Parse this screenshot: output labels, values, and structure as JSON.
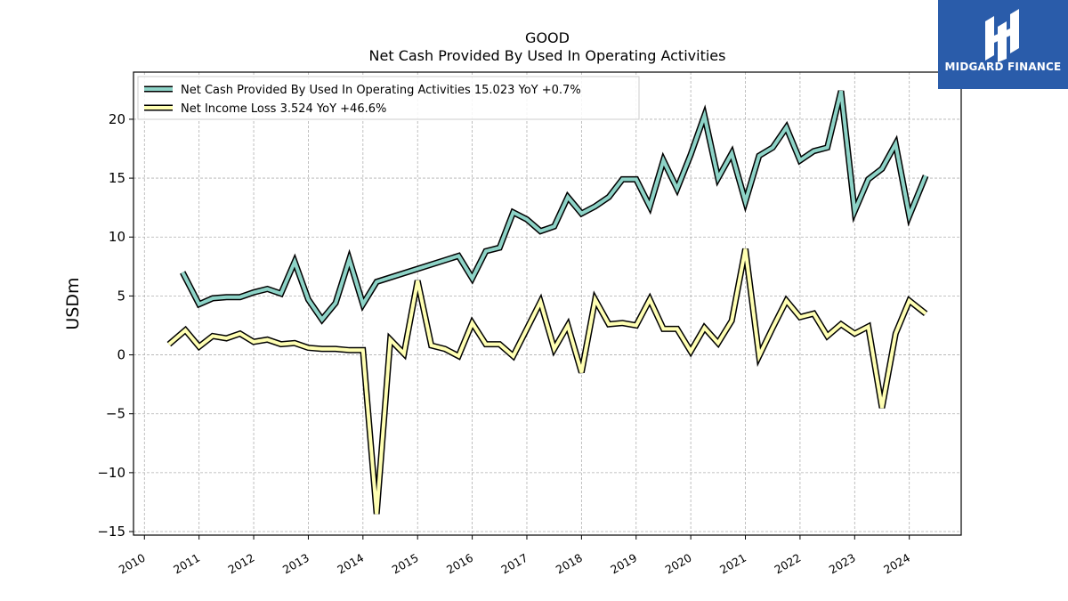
{
  "logo": {
    "text": "MIDGARD FINANCE",
    "icon": "midgard-logo-icon",
    "bg_color": "#2a5caa"
  },
  "chart_data": {
    "type": "line",
    "title": "GOOD",
    "subtitle": "Net Cash Provided By Used In Operating Activities",
    "ylabel": "USDm",
    "xlabel": "",
    "xlim": [
      2009.8,
      2024.95
    ],
    "ylim": [
      -15.3,
      24.0
    ],
    "yticks": [
      -15,
      -10,
      -5,
      0,
      5,
      10,
      15,
      20
    ],
    "ytick_labels": [
      "−15",
      "−10",
      "−5",
      "0",
      "5",
      "10",
      "15",
      "20"
    ],
    "xticks": [
      2010,
      2011,
      2012,
      2013,
      2014,
      2015,
      2016,
      2017,
      2018,
      2019,
      2020,
      2021,
      2022,
      2023,
      2024
    ],
    "xtick_labels": [
      "2010",
      "2011",
      "2012",
      "2013",
      "2014",
      "2015",
      "2016",
      "2017",
      "2018",
      "2019",
      "2020",
      "2021",
      "2022",
      "2023",
      "2024"
    ],
    "grid": true,
    "legend_position": "upper-left",
    "series": [
      {
        "name": "Net Cash Provided By Used In Operating Activities",
        "legend_label": "Net Cash Provided By Used In Operating Activities  15.023 YoY +0.7%",
        "color": "#8dd3c7",
        "points": [
          [
            2010.7,
            7.0
          ],
          [
            2011.0,
            4.3
          ],
          [
            2011.25,
            4.8
          ],
          [
            2011.5,
            4.9
          ],
          [
            2011.75,
            4.9
          ],
          [
            2012.0,
            5.3
          ],
          [
            2012.25,
            5.6
          ],
          [
            2012.5,
            5.2
          ],
          [
            2012.75,
            7.9
          ],
          [
            2013.0,
            4.7
          ],
          [
            2013.25,
            3.0
          ],
          [
            2013.5,
            4.4
          ],
          [
            2013.75,
            8.1
          ],
          [
            2014.0,
            4.3
          ],
          [
            2014.25,
            6.2
          ],
          [
            2015.75,
            8.4
          ],
          [
            2016.0,
            6.5
          ],
          [
            2016.25,
            8.8
          ],
          [
            2016.5,
            9.1
          ],
          [
            2016.75,
            12.1
          ],
          [
            2017.0,
            11.5
          ],
          [
            2017.25,
            10.5
          ],
          [
            2017.5,
            10.9
          ],
          [
            2017.75,
            13.4
          ],
          [
            2018.0,
            12.0
          ],
          [
            2018.25,
            12.6
          ],
          [
            2018.5,
            13.4
          ],
          [
            2018.75,
            14.9
          ],
          [
            2019.0,
            14.9
          ],
          [
            2019.25,
            12.6
          ],
          [
            2019.5,
            16.5
          ],
          [
            2019.75,
            14.1
          ],
          [
            2020.0,
            17.0
          ],
          [
            2020.25,
            20.3
          ],
          [
            2020.5,
            15.0
          ],
          [
            2020.75,
            17.1
          ],
          [
            2021.0,
            13.0
          ],
          [
            2021.25,
            16.9
          ],
          [
            2021.5,
            17.6
          ],
          [
            2021.75,
            19.3
          ],
          [
            2022.0,
            16.5
          ],
          [
            2022.25,
            17.3
          ],
          [
            2022.5,
            17.6
          ],
          [
            2022.75,
            22.4
          ],
          [
            2023.0,
            12.2
          ],
          [
            2023.25,
            14.9
          ],
          [
            2023.5,
            15.8
          ],
          [
            2023.75,
            17.9
          ],
          [
            2024.0,
            11.8
          ],
          [
            2024.3,
            15.2
          ]
        ]
      },
      {
        "name": "Net Income Loss",
        "legend_label": "Net Income Loss  3.524 YoY +46.6%",
        "color": "#ffffb3",
        "points": [
          [
            2010.45,
            0.9
          ],
          [
            2010.75,
            2.1
          ],
          [
            2011.0,
            0.7
          ],
          [
            2011.25,
            1.6
          ],
          [
            2011.5,
            1.4
          ],
          [
            2011.75,
            1.8
          ],
          [
            2012.0,
            1.1
          ],
          [
            2012.25,
            1.3
          ],
          [
            2012.5,
            0.9
          ],
          [
            2012.75,
            1.0
          ],
          [
            2013.0,
            0.6
          ],
          [
            2013.25,
            0.5
          ],
          [
            2013.5,
            0.5
          ],
          [
            2013.75,
            0.4
          ],
          [
            2014.0,
            0.4
          ],
          [
            2014.25,
            -13.5
          ],
          [
            2014.5,
            1.3
          ],
          [
            2014.75,
            0.1
          ],
          [
            2015.0,
            6.3
          ],
          [
            2015.25,
            0.8
          ],
          [
            2015.5,
            0.5
          ],
          [
            2015.75,
            -0.1
          ],
          [
            2016.0,
            2.7
          ],
          [
            2016.25,
            0.9
          ],
          [
            2016.5,
            0.9
          ],
          [
            2016.75,
            -0.1
          ],
          [
            2017.0,
            2.2
          ],
          [
            2017.25,
            4.5
          ],
          [
            2017.5,
            0.5
          ],
          [
            2017.75,
            2.5
          ],
          [
            2018.0,
            -1.5
          ],
          [
            2018.25,
            4.7
          ],
          [
            2018.5,
            2.6
          ],
          [
            2018.75,
            2.7
          ],
          [
            2019.0,
            2.5
          ],
          [
            2019.25,
            4.7
          ],
          [
            2019.5,
            2.2
          ],
          [
            2019.75,
            2.2
          ],
          [
            2020.0,
            0.3
          ],
          [
            2020.25,
            2.3
          ],
          [
            2020.5,
            1.0
          ],
          [
            2020.75,
            2.9
          ],
          [
            2021.0,
            9.0
          ],
          [
            2021.25,
            -0.1
          ],
          [
            2021.5,
            2.3
          ],
          [
            2021.75,
            4.6
          ],
          [
            2022.0,
            3.2
          ],
          [
            2022.25,
            3.5
          ],
          [
            2022.5,
            1.6
          ],
          [
            2022.75,
            2.6
          ],
          [
            2023.0,
            1.8
          ],
          [
            2023.25,
            2.4
          ],
          [
            2023.5,
            -4.5
          ],
          [
            2023.75,
            1.8
          ],
          [
            2024.0,
            4.6
          ],
          [
            2024.3,
            3.5
          ]
        ]
      }
    ]
  }
}
